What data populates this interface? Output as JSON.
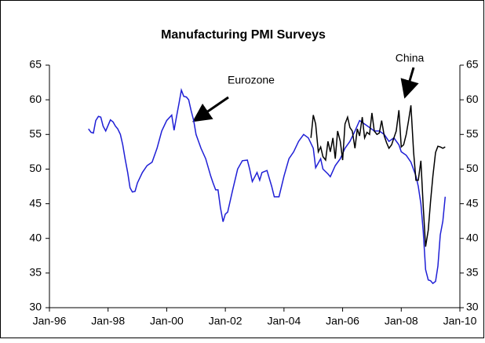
{
  "chart_data": {
    "type": "line",
    "title": "Manufacturing PMI Surveys",
    "annotations": [
      "Eurozone",
      "China"
    ],
    "xlim": [
      1996,
      2010
    ],
    "xticks": [
      {
        "value": 1996,
        "label": "Jan-96"
      },
      {
        "value": 1998,
        "label": "Jan-98"
      },
      {
        "value": 2000,
        "label": "Jan-00"
      },
      {
        "value": 2002,
        "label": "Jan-02"
      },
      {
        "value": 2004,
        "label": "Jan-04"
      },
      {
        "value": 2006,
        "label": "Jan-06"
      },
      {
        "value": 2008,
        "label": "Jan-08"
      },
      {
        "value": 2010,
        "label": "Jan-10"
      }
    ],
    "ylim": [
      30,
      65
    ],
    "yticks": [
      30,
      35,
      40,
      45,
      50,
      55,
      60,
      65
    ],
    "y2lim": [
      30,
      65
    ],
    "y2ticks": [
      30,
      35,
      40,
      45,
      50,
      55,
      60,
      65
    ],
    "series": [
      {
        "name": "Eurozone",
        "color": "#1f1fd6",
        "x": [
          1997.33,
          1997.42,
          1997.5,
          1997.58,
          1997.67,
          1997.75,
          1997.83,
          1997.92,
          1998.0,
          1998.08,
          1998.17,
          1998.25,
          1998.33,
          1998.42,
          1998.5,
          1998.58,
          1998.67,
          1998.75,
          1998.83,
          1998.92,
          1999.0,
          1999.17,
          1999.33,
          1999.5,
          1999.67,
          1999.83,
          2000.0,
          2000.17,
          2000.25,
          2000.33,
          2000.42,
          2000.5,
          2000.58,
          2000.67,
          2000.75,
          2000.83,
          2000.92,
          2001.0,
          2001.17,
          2001.33,
          2001.5,
          2001.58,
          2001.67,
          2001.75,
          2001.83,
          2001.92,
          2002.0,
          2002.08,
          2002.25,
          2002.42,
          2002.58,
          2002.75,
          2002.83,
          2002.92,
          2003.08,
          2003.17,
          2003.25,
          2003.42,
          2003.58,
          2003.67,
          2003.83,
          2004.0,
          2004.17,
          2004.33,
          2004.5,
          2004.67,
          2004.83,
          2005.0,
          2005.08,
          2005.25,
          2005.33,
          2005.5,
          2005.58,
          2005.75,
          2005.92,
          2006.08,
          2006.25,
          2006.42,
          2006.58,
          2006.75,
          2006.92,
          2007.08,
          2007.25,
          2007.42,
          2007.58,
          2007.75,
          2007.92,
          2008.0,
          2008.17,
          2008.33,
          2008.5,
          2008.58,
          2008.67,
          2008.75,
          2008.83,
          2008.92,
          2009.0,
          2009.08,
          2009.17,
          2009.25,
          2009.33,
          2009.42,
          2009.5
        ],
        "values": [
          55.8,
          55.3,
          55.2,
          57.0,
          57.6,
          57.5,
          56.2,
          55.5,
          56.3,
          57.1,
          56.8,
          56.2,
          55.8,
          55.0,
          53.5,
          51.5,
          49.5,
          47.3,
          46.7,
          46.8,
          48.0,
          49.5,
          50.5,
          51.0,
          53.0,
          55.5,
          57.0,
          57.8,
          55.6,
          57.5,
          59.5,
          61.4,
          60.5,
          60.4,
          60.0,
          58.5,
          57.0,
          55.0,
          53.0,
          51.5,
          49.0,
          48.0,
          47.0,
          47.0,
          44.5,
          42.4,
          43.5,
          43.8,
          47.0,
          50.0,
          51.2,
          51.3,
          50.0,
          48.2,
          49.5,
          48.4,
          49.5,
          49.8,
          47.5,
          46.0,
          46.0,
          49.0,
          51.5,
          52.5,
          54.0,
          55.0,
          54.5,
          53.0,
          50.2,
          51.5,
          50.0,
          49.3,
          48.9,
          50.5,
          51.5,
          53.0,
          54.0,
          55.5,
          57.0,
          56.5,
          56.0,
          55.5,
          55.5,
          55.0,
          54.0,
          54.5,
          53.5,
          52.5,
          52.0,
          51.0,
          49.0,
          47.5,
          45.0,
          41.0,
          35.5,
          34.0,
          33.9,
          33.5,
          33.8,
          36.0,
          40.5,
          42.5,
          46.0
        ]
      },
      {
        "name": "China",
        "color": "#000000",
        "x": [
          2004.92,
          2005.0,
          2005.08,
          2005.17,
          2005.25,
          2005.33,
          2005.42,
          2005.5,
          2005.58,
          2005.67,
          2005.75,
          2005.83,
          2005.92,
          2006.0,
          2006.08,
          2006.17,
          2006.25,
          2006.33,
          2006.42,
          2006.5,
          2006.58,
          2006.67,
          2006.75,
          2006.83,
          2006.92,
          2007.0,
          2007.08,
          2007.17,
          2007.25,
          2007.33,
          2007.42,
          2007.5,
          2007.58,
          2007.67,
          2007.75,
          2007.83,
          2007.92,
          2008.0,
          2008.08,
          2008.17,
          2008.25,
          2008.33,
          2008.42,
          2008.5,
          2008.58,
          2008.67,
          2008.75,
          2008.83,
          2008.92,
          2009.0,
          2009.08,
          2009.17,
          2009.25,
          2009.33,
          2009.42,
          2009.5
        ],
        "values": [
          54.5,
          57.8,
          56.5,
          52.5,
          53.2,
          51.8,
          51.3,
          54.0,
          52.5,
          54.5,
          51.5,
          55.5,
          54.0,
          51.3,
          56.5,
          57.5,
          56.0,
          55.5,
          53.0,
          55.8,
          54.8,
          57.5,
          54.5,
          55.3,
          55.0,
          58.1,
          55.5,
          55.0,
          55.2,
          57.0,
          54.8,
          53.8,
          53.0,
          53.5,
          54.5,
          55.5,
          58.5,
          53.2,
          53.5,
          55.0,
          57.0,
          59.2,
          52.5,
          48.4,
          48.4,
          51.2,
          44.6,
          38.8,
          41.2,
          45.3,
          49.0,
          52.4,
          53.3,
          53.2,
          53.0,
          53.2
        ]
      }
    ]
  }
}
